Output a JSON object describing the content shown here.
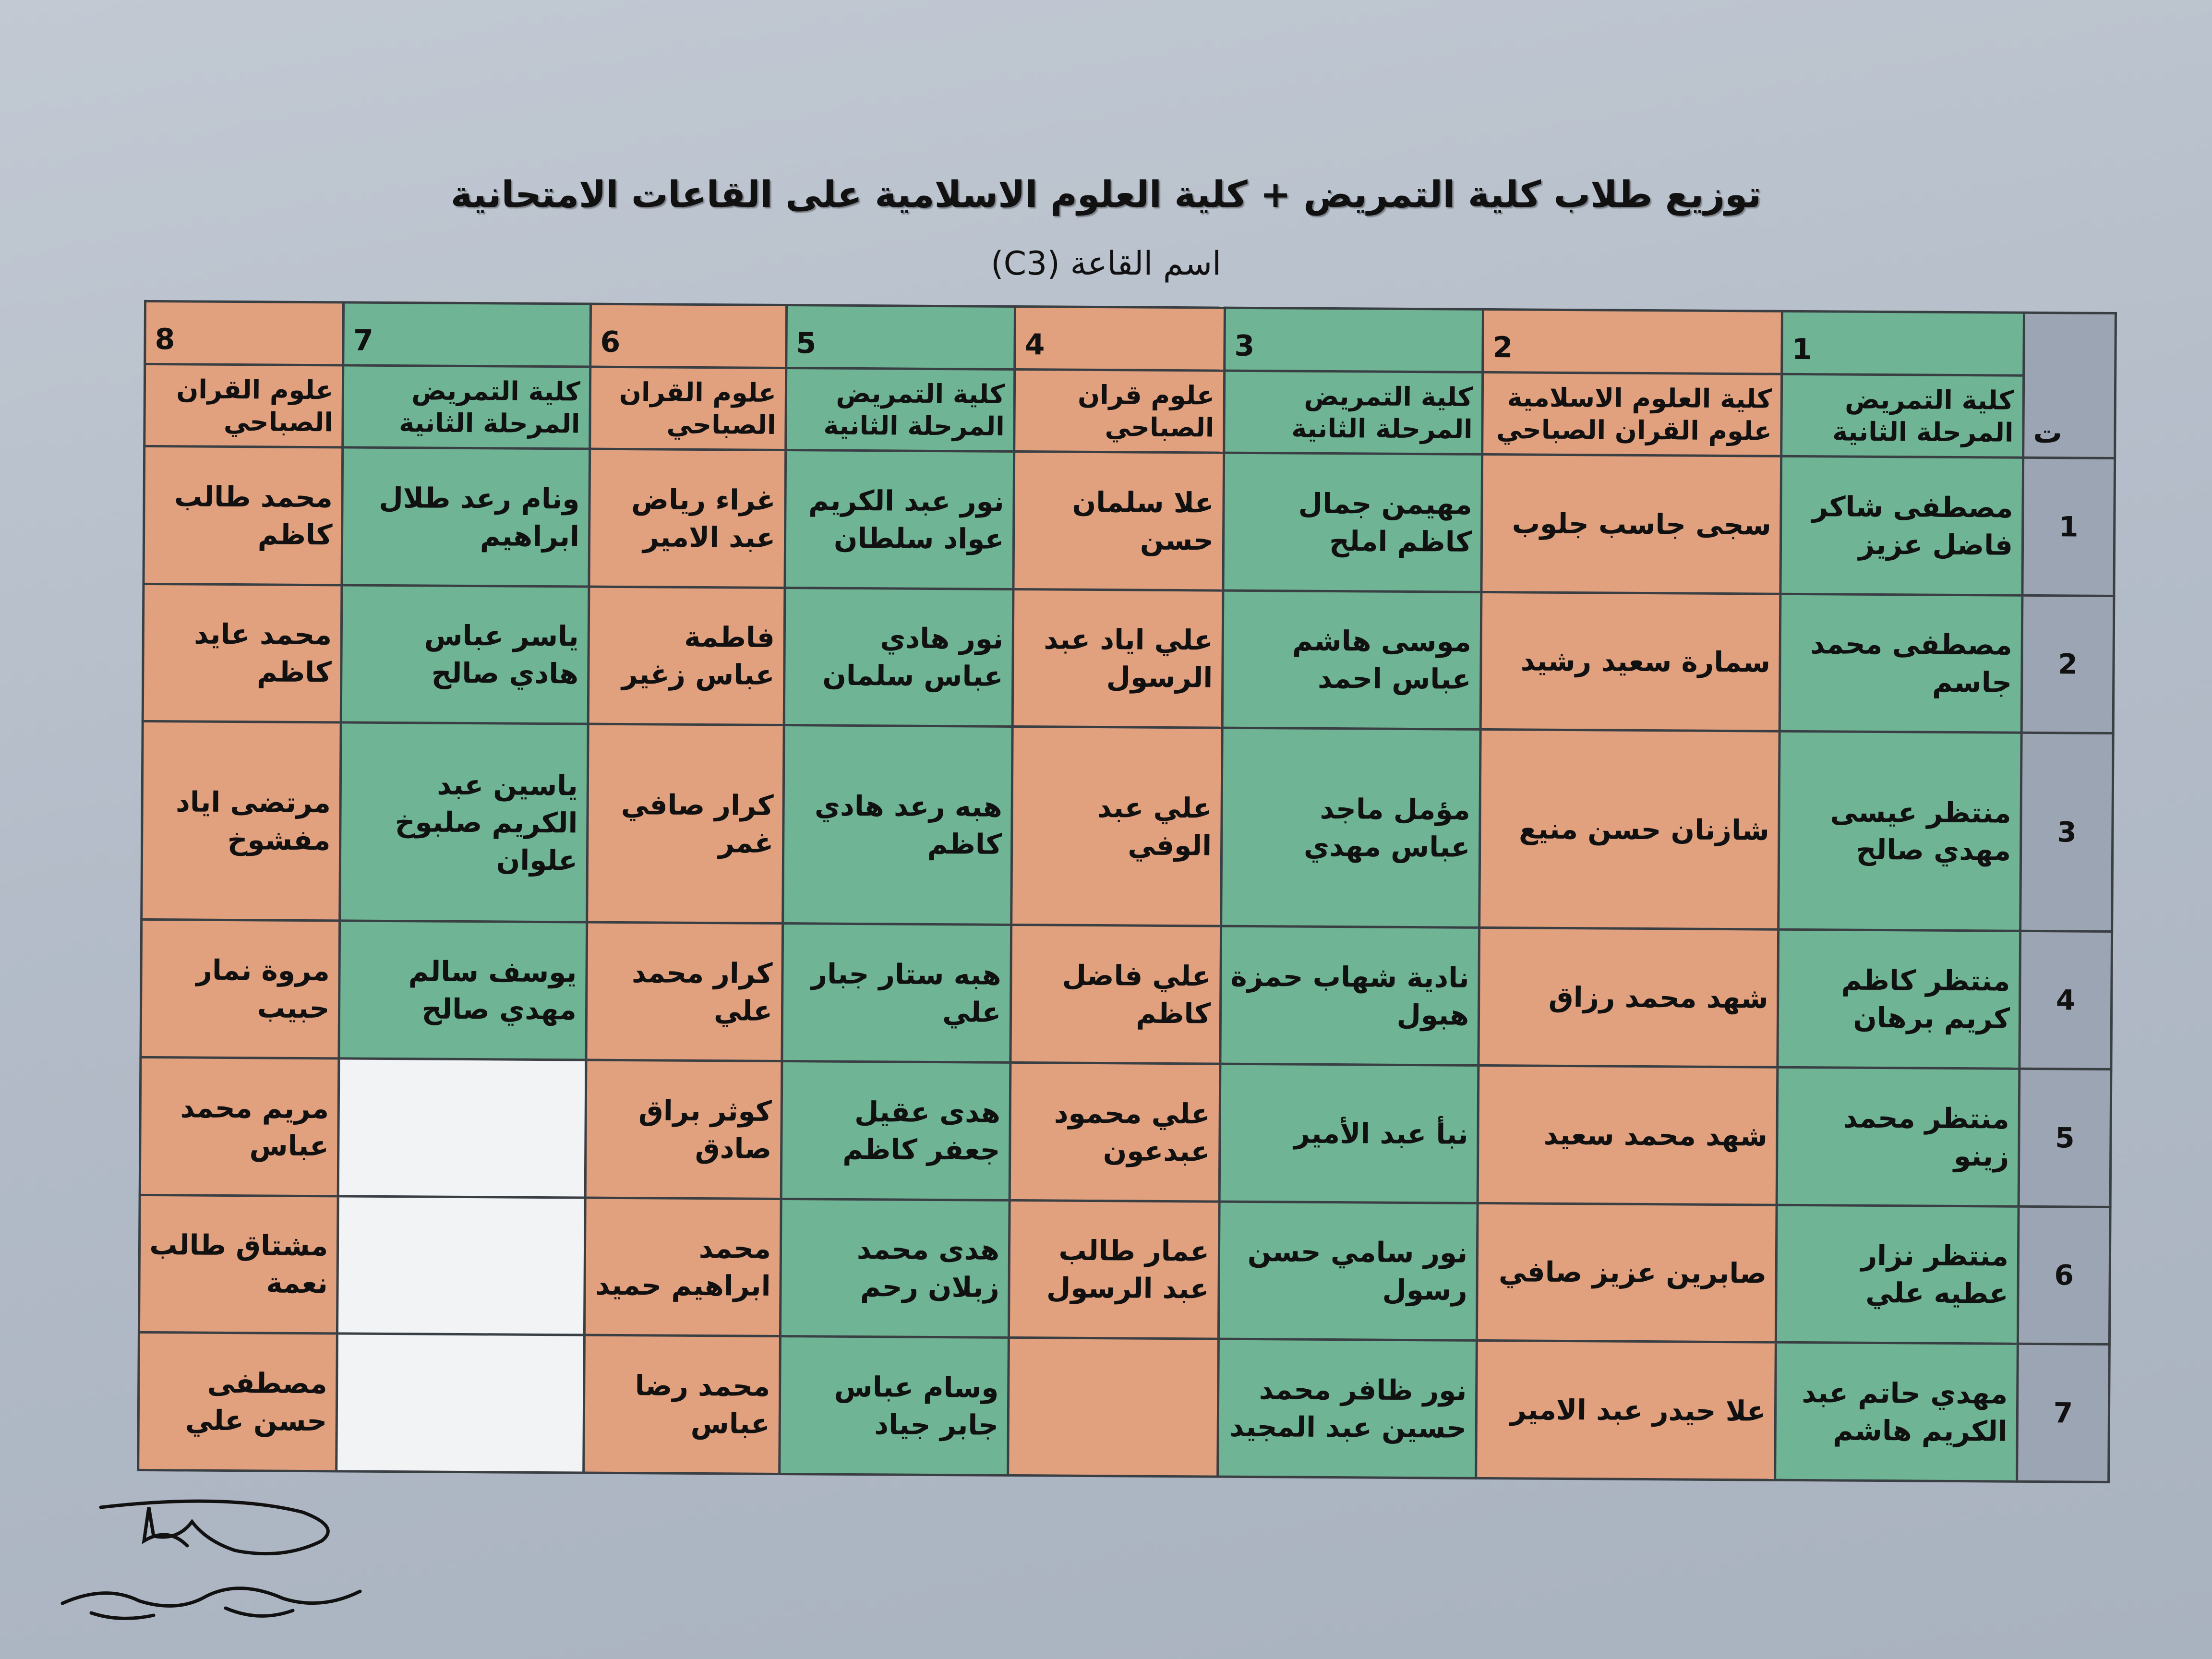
{
  "title": "توزيع طلاب كلية التمريض + كلية العلوم الاسلامية على القاعات الامتحانية",
  "subtitle": "اسم القاعة (C3)",
  "colors": {
    "nursing": "#6fb595",
    "quran": "#e1a17f",
    "index_column": "#9ca5b3",
    "empty": "#f1f3f5"
  },
  "table": {
    "index_header": "ت",
    "columns": [
      {
        "number": "1",
        "header": "كلية التمريض المرحلة الثانية",
        "color": "g"
      },
      {
        "number": "2",
        "header": "كلية العلوم الاسلامية علوم القران الصباحي",
        "color": "o"
      },
      {
        "number": "3",
        "header": "كلية التمريض المرحلة الثانية",
        "color": "g"
      },
      {
        "number": "4",
        "header": "علوم قران الصباحي",
        "color": "o"
      },
      {
        "number": "5",
        "header": "كلية التمريض المرحلة الثانية",
        "color": "g"
      },
      {
        "number": "6",
        "header": "علوم القران الصباحي",
        "color": "o"
      },
      {
        "number": "7",
        "header": "كلية التمريض المرحلة الثانية",
        "color": "g"
      },
      {
        "number": "8",
        "header": "علوم القران الصباحي",
        "color": "o"
      }
    ],
    "rows": [
      {
        "index": "1",
        "cells": [
          "مصطفى شاكر فاضل عزيز",
          "سجى جاسب جلوب",
          "مهيمن جمال كاظم املح",
          "علا سلمان حسن",
          "نور عبد الكريم عواد سلطان",
          "غراء رياض عبد الامير",
          "ونام رعد طلال ابراهيم",
          "محمد طالب كاظم"
        ]
      },
      {
        "index": "2",
        "cells": [
          "مصطفى محمد جاسم",
          "سمارة سعيد رشيد",
          "موسى هاشم عباس احمد",
          "علي اياد عبد الرسول",
          "نور هادي عباس سلمان",
          "فاطمة عباس زغير",
          "ياسر عباس هادي صالح",
          "محمد عايد كاظم"
        ]
      },
      {
        "index": "3",
        "cells": [
          "منتظر عيسى مهدي صالح",
          "شازنان حسن منيع",
          "مؤمل ماجد عباس مهدي",
          "علي عبد الوفي",
          "هبه رعد هادي كاظم",
          "كرار صافي غمر",
          "ياسين عبد الكريم صلبوخ علوان",
          "مرتضى اياد مفشوخ"
        ]
      },
      {
        "index": "4",
        "cells": [
          "منتظر كاظم كريم برهان",
          "شهد محمد رزاق",
          "نادية شهاب حمزة هبول",
          "علي فاضل كاظم",
          "هبه ستار جبار علي",
          "كرار محمد علي",
          "يوسف سالم مهدي صالح",
          "مروة نمار حبيب"
        ]
      },
      {
        "index": "5",
        "cells": [
          "منتظر محمد زينو",
          "شهد محمد سعيد",
          "نبأ عبد الأمير",
          "علي محمود عبدعون",
          "هدى عقيل جعفر كاظم",
          "كوثر براق صادق",
          "",
          "مريم محمد عباس"
        ]
      },
      {
        "index": "6",
        "cells": [
          "منتظر نزار عطيه علي",
          "صابرين عزيز صافي",
          "نور سامي حسن رسول",
          "عمار طالب عبد الرسول",
          "هدى محمد زبلان رحم",
          "محمد ابراهيم حميد",
          "",
          "مشتاق طالب نعمة"
        ]
      },
      {
        "index": "7",
        "cells": [
          "مهدي حاتم عبد الكريم هاشم",
          "علا حيدر عبد الامير",
          "نور ظافر محمد حسين عبد المجيد",
          "",
          "وسام عباس جابر جياد",
          "محمد رضا عباس",
          "",
          "مصطفى حسن علي"
        ]
      }
    ]
  },
  "signature": "ا.م.د حميد بدر"
}
